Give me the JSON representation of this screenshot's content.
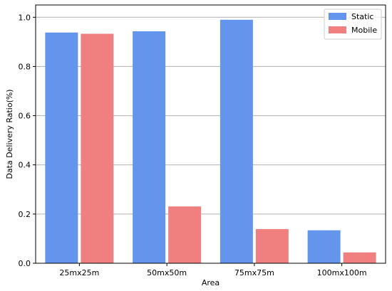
{
  "chart_data": {
    "type": "bar",
    "title": "",
    "xlabel": "Area",
    "ylabel": "Data Delivery Ratio(%)",
    "categories": [
      "25mx25m",
      "50mx50m",
      "75mx75m",
      "100mx100m"
    ],
    "series": [
      {
        "name": "Static",
        "values": [
          0.938,
          0.943,
          0.99,
          0.134
        ],
        "color": "#6495ED"
      },
      {
        "name": "Mobile",
        "values": [
          0.933,
          0.231,
          0.139,
          0.044
        ],
        "color": "#F08080"
      }
    ],
    "ylim": [
      0,
      1.05
    ],
    "yticks": [
      "0.0",
      "0.2",
      "0.4",
      "0.6",
      "0.8",
      "1.0"
    ],
    "grid": "y",
    "legend_position": "top-right"
  }
}
